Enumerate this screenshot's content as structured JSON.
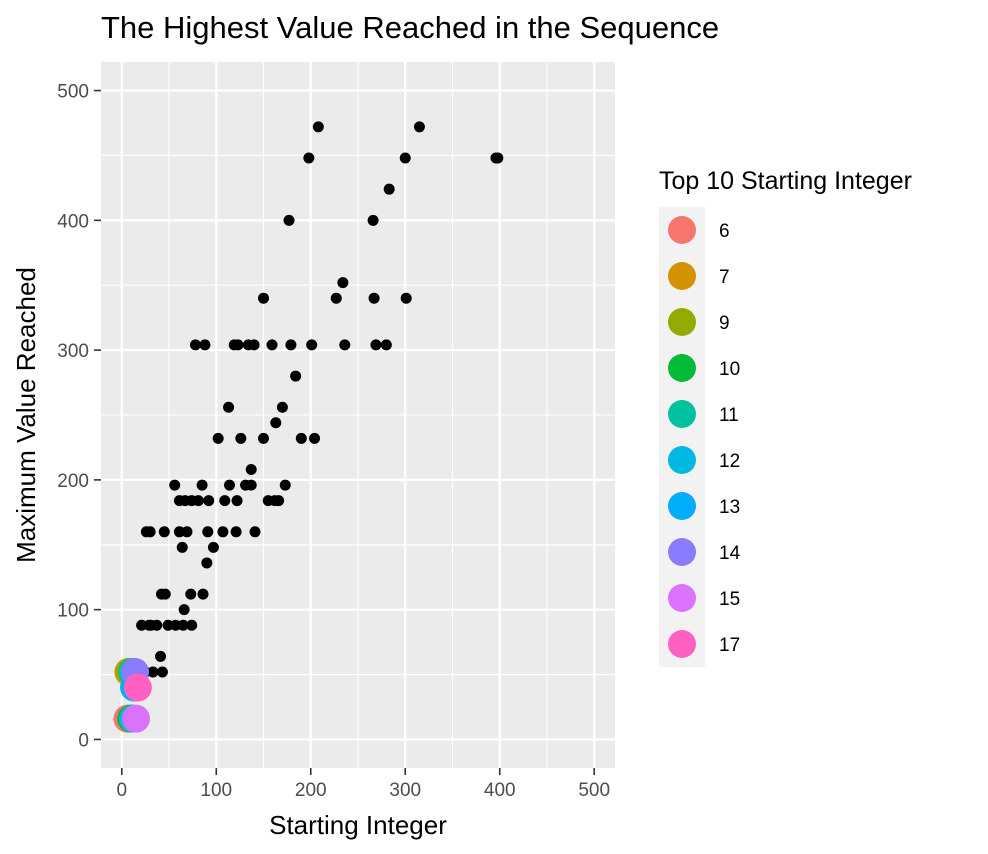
{
  "chart_data": {
    "type": "scatter",
    "title": "The Highest Value Reached in the Sequence",
    "xlabel": "Starting Integer",
    "ylabel": "Maximum Value Reached",
    "xlim": [
      -22,
      522
    ],
    "ylim": [
      -22,
      522
    ],
    "x_ticks": [
      0,
      100,
      200,
      300,
      400,
      500
    ],
    "y_ticks": [
      0,
      100,
      200,
      300,
      400,
      500
    ],
    "grid": true,
    "legend": {
      "title": "Top 10 Starting Integer",
      "position": "right",
      "entries": [
        {
          "label": "6",
          "color": "#F8766D"
        },
        {
          "label": "7",
          "color": "#D39200"
        },
        {
          "label": "9",
          "color": "#93AA00"
        },
        {
          "label": "10",
          "color": "#00BA38"
        },
        {
          "label": "11",
          "color": "#00C19F"
        },
        {
          "label": "12",
          "color": "#00B9E3"
        },
        {
          "label": "13",
          "color": "#00ADFA"
        },
        {
          "label": "14",
          "color": "#8B7CFF"
        },
        {
          "label": "15",
          "color": "#DB72FB"
        },
        {
          "label": "17",
          "color": "#FF61C3"
        }
      ]
    },
    "series": [
      {
        "color": "#000000",
        "points": [
          [
            18,
            52
          ],
          [
            25,
            52
          ],
          [
            33,
            52
          ],
          [
            43,
            52
          ],
          [
            29,
            88
          ],
          [
            21,
            88
          ],
          [
            37,
            88
          ],
          [
            31,
            88
          ],
          [
            49,
            88
          ],
          [
            57,
            88
          ],
          [
            65,
            88
          ],
          [
            74,
            88
          ],
          [
            41,
            64
          ],
          [
            42,
            112
          ],
          [
            46,
            112
          ],
          [
            86,
            112
          ],
          [
            73,
            112
          ],
          [
            66,
            100
          ],
          [
            26,
            160
          ],
          [
            30,
            160
          ],
          [
            45,
            160
          ],
          [
            61,
            160
          ],
          [
            69,
            160
          ],
          [
            91,
            160
          ],
          [
            107,
            160
          ],
          [
            121,
            160
          ],
          [
            141,
            160
          ],
          [
            64,
            148
          ],
          [
            97,
            148
          ],
          [
            90,
            136
          ],
          [
            56,
            196
          ],
          [
            85,
            196
          ],
          [
            114,
            196
          ],
          [
            131,
            196
          ],
          [
            137,
            196
          ],
          [
            173,
            196
          ],
          [
            61,
            184
          ],
          [
            67,
            184
          ],
          [
            74,
            184
          ],
          [
            81,
            184
          ],
          [
            92,
            184
          ],
          [
            109,
            184
          ],
          [
            122,
            184
          ],
          [
            155,
            184
          ],
          [
            162,
            184
          ],
          [
            166,
            184
          ],
          [
            137,
            208
          ],
          [
            102,
            232
          ],
          [
            126,
            232
          ],
          [
            150,
            232
          ],
          [
            190,
            232
          ],
          [
            204,
            232
          ],
          [
            113,
            256
          ],
          [
            170,
            256
          ],
          [
            163,
            244
          ],
          [
            184,
            280
          ],
          [
            78,
            304
          ],
          [
            88,
            304
          ],
          [
            119,
            304
          ],
          [
            123,
            304
          ],
          [
            134,
            304
          ],
          [
            140,
            304
          ],
          [
            159,
            304
          ],
          [
            179,
            304
          ],
          [
            201,
            304
          ],
          [
            236,
            304
          ],
          [
            269,
            304
          ],
          [
            280,
            304
          ],
          [
            150,
            340
          ],
          [
            227,
            340
          ],
          [
            267,
            340
          ],
          [
            301,
            340
          ],
          [
            234,
            352
          ],
          [
            177,
            400
          ],
          [
            266,
            400
          ],
          [
            283,
            424
          ],
          [
            198,
            448
          ],
          [
            300,
            448
          ],
          [
            396,
            448
          ],
          [
            398,
            448
          ],
          [
            208,
            472
          ],
          [
            315,
            472
          ]
        ]
      },
      {
        "name": "6",
        "color": "#F8766D",
        "points": [
          [
            6,
            16
          ]
        ]
      },
      {
        "name": "7",
        "color": "#D39200",
        "points": [
          [
            7,
            52
          ]
        ]
      },
      {
        "name": "9",
        "color": "#93AA00",
        "points": [
          [
            9,
            52
          ]
        ]
      },
      {
        "name": "10",
        "color": "#00BA38",
        "points": [
          [
            10,
            16
          ]
        ]
      },
      {
        "name": "11",
        "color": "#00C19F",
        "points": [
          [
            11,
            52
          ]
        ]
      },
      {
        "name": "12",
        "color": "#00B9E3",
        "points": [
          [
            12,
            16
          ]
        ]
      },
      {
        "name": "13",
        "color": "#00ADFA",
        "points": [
          [
            13,
            40
          ]
        ]
      },
      {
        "name": "14",
        "color": "#8B7CFF",
        "points": [
          [
            14,
            52
          ]
        ]
      },
      {
        "name": "15",
        "color": "#DB72FB",
        "points": [
          [
            15,
            16
          ]
        ]
      },
      {
        "name": "17",
        "color": "#FF61C3",
        "points": [
          [
            17,
            40
          ]
        ]
      }
    ]
  }
}
